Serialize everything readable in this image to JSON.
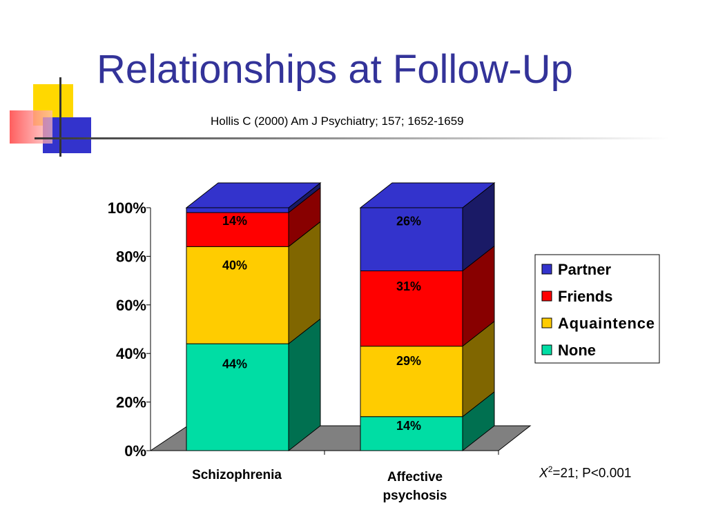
{
  "slide": {
    "title": "Relationships at Follow-Up",
    "subtitle": "Hollis C (2000) Am J Psychiatry; 157; 1652-1659",
    "stat_symbol": "X",
    "stat_exponent": "2",
    "stat_rest": "=21; P<0.001"
  },
  "chart_data": {
    "type": "bar",
    "stacked": true,
    "three_d": true,
    "title": "",
    "xlabel": "",
    "ylabel": "",
    "ylim": [
      0,
      100
    ],
    "y_ticks": [
      "0%",
      "20%",
      "40%",
      "60%",
      "80%",
      "100%"
    ],
    "categories": [
      "Schizophrenia",
      "Affective psychosis"
    ],
    "series": [
      {
        "name": "None",
        "values": [
          44,
          14
        ],
        "labels": [
          "44%",
          "14%"
        ],
        "color": "#00DDA4",
        "side": "#007050"
      },
      {
        "name": "Aquaintence",
        "values": [
          40,
          29
        ],
        "labels": [
          "40%",
          "29%"
        ],
        "color": "#FFCC00",
        "side": "#806600"
      },
      {
        "name": "Friends",
        "values": [
          14,
          31
        ],
        "labels": [
          "14%",
          "31%"
        ],
        "color": "#FF0000",
        "side": "#880000"
      },
      {
        "name": "Partner",
        "values": [
          2,
          26
        ],
        "labels": [
          "",
          "26%"
        ],
        "color": "#3333CC",
        "side": "#1A1A66"
      }
    ],
    "legend_position": "right",
    "legend_order": [
      "Partner",
      "Friends",
      "Aquaintence",
      "None"
    ],
    "grid": false
  }
}
